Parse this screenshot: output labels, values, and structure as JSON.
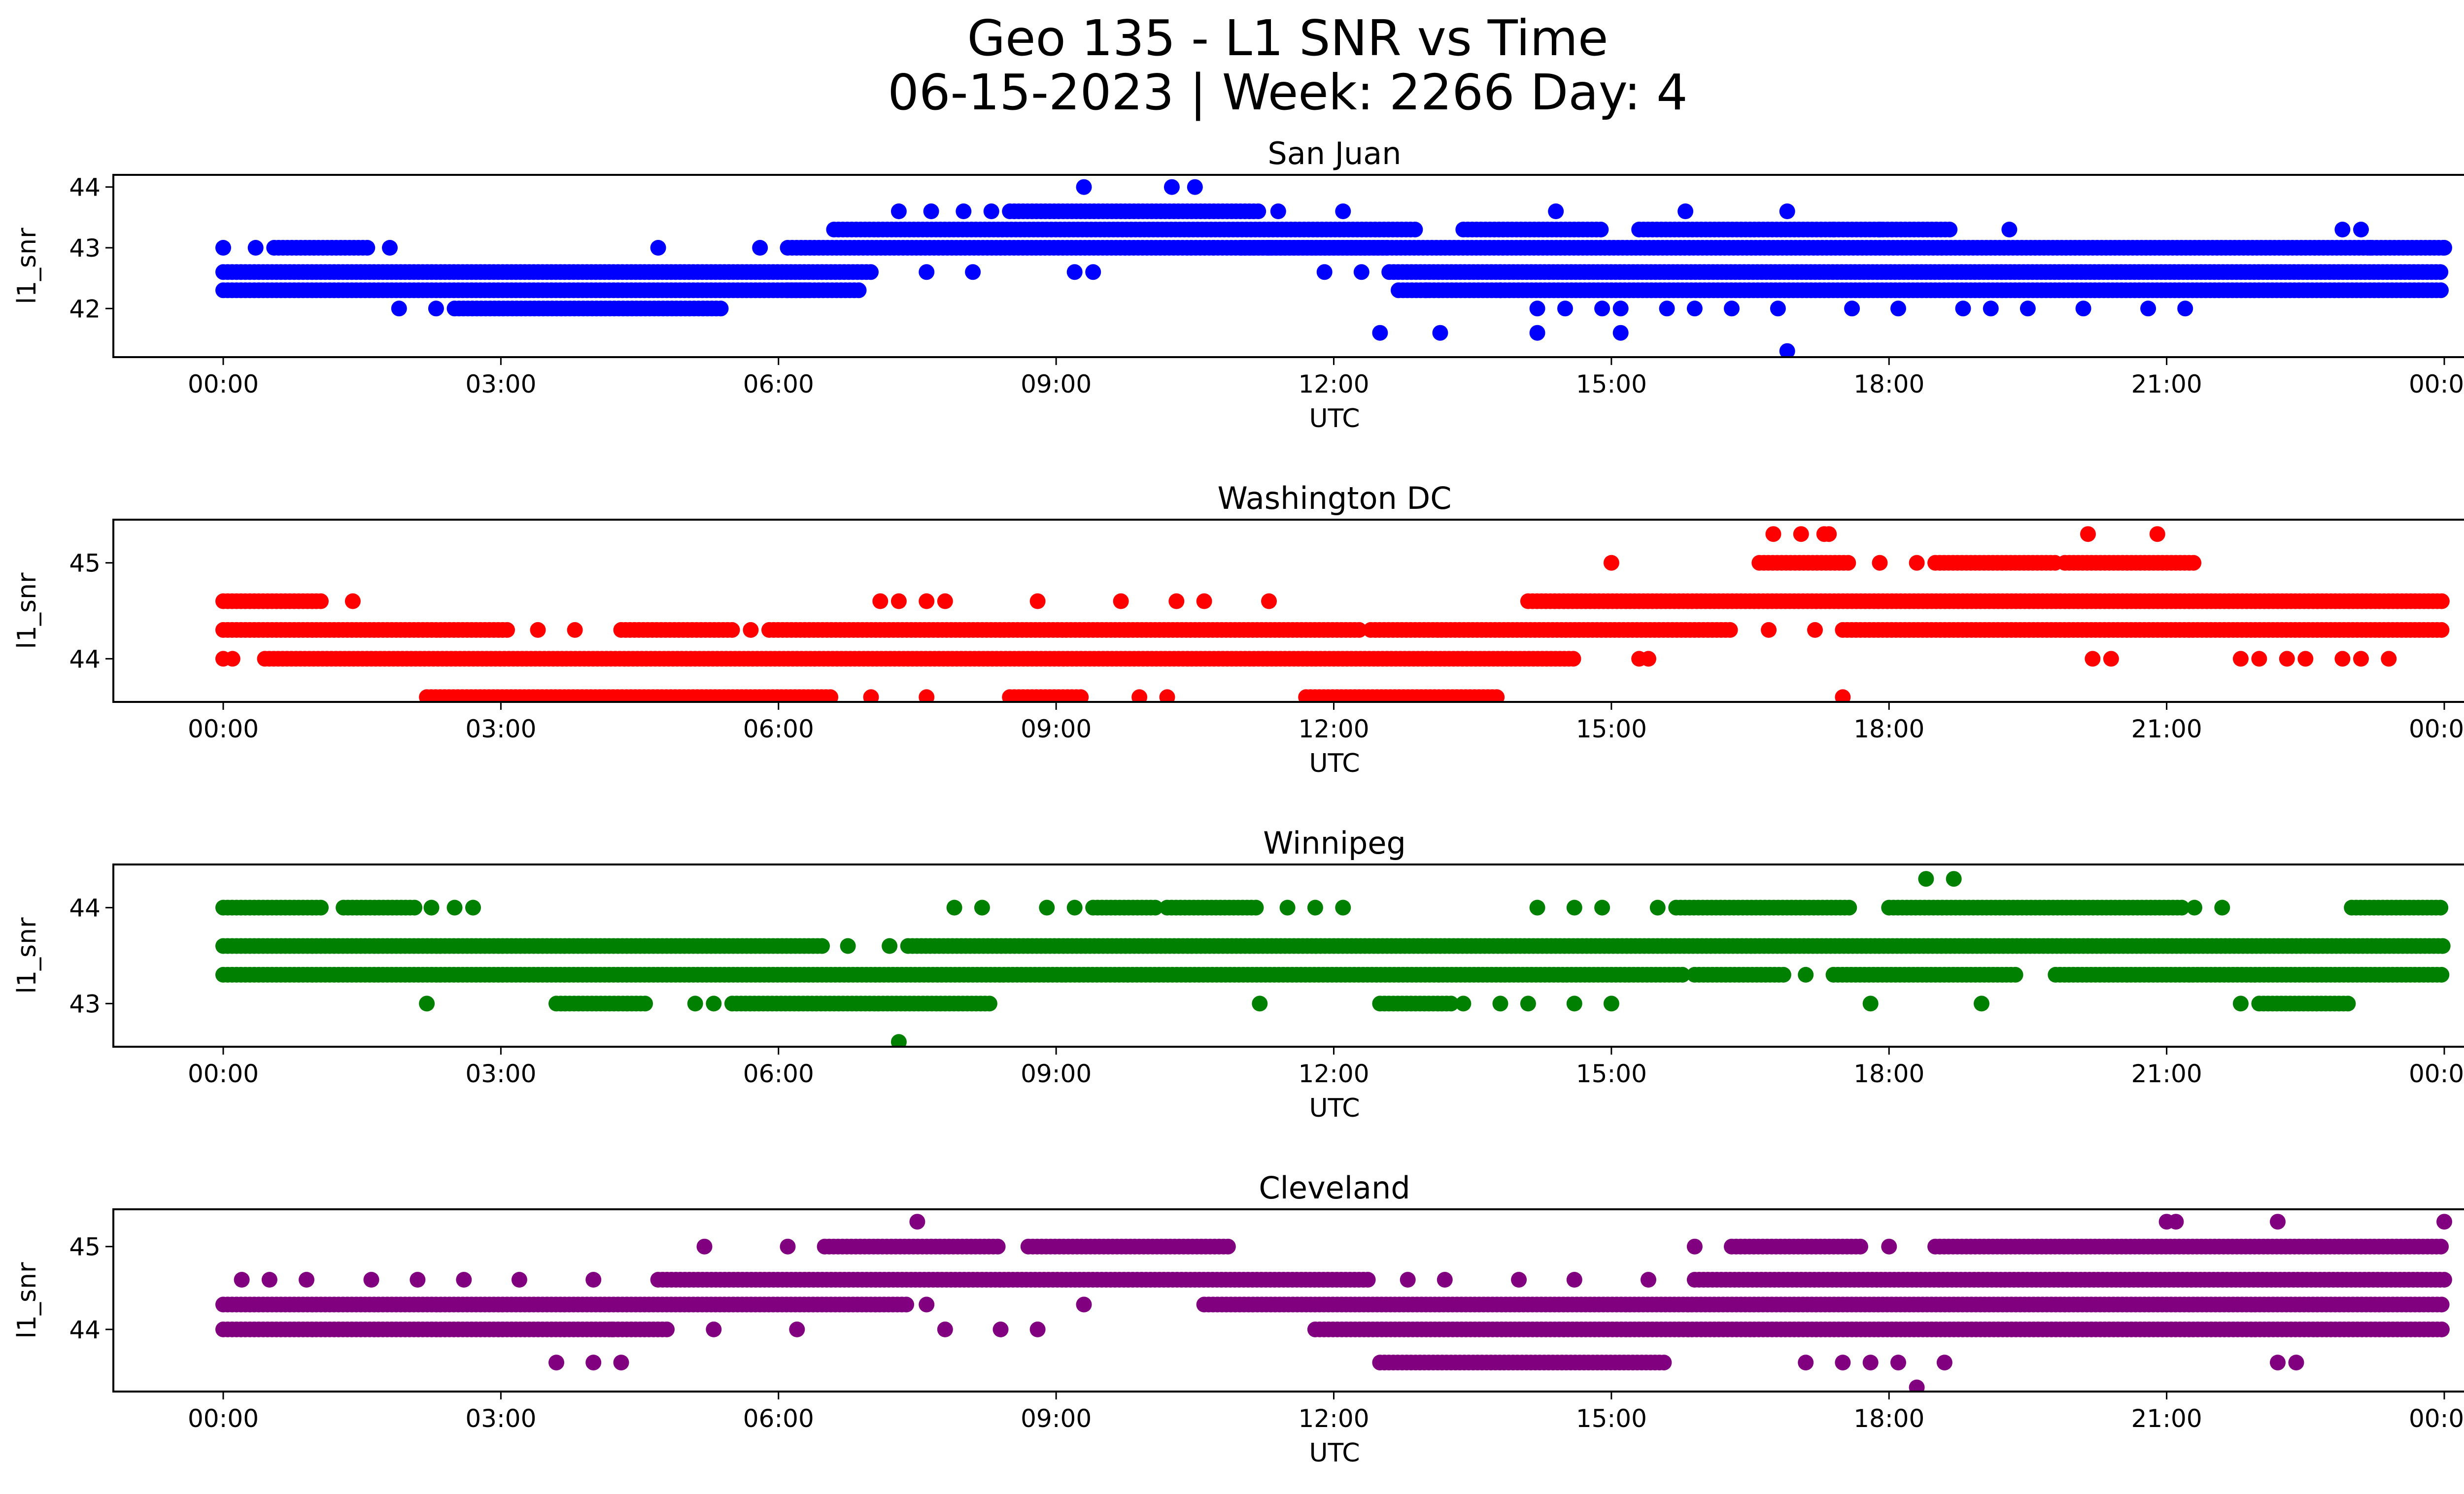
{
  "title_line1": "Geo 135 - L1 SNR vs Time",
  "title_line2": "06-15-2023 | Week: 2266 Day: 4",
  "chart_data": [
    {
      "type": "scatter",
      "title": "San Juan",
      "xlabel": "UTC",
      "ylabel": "l1_snr",
      "color": "#0000ff",
      "xlim": [
        "00:00",
        "00:00"
      ],
      "xticks": [
        "00:00",
        "03:00",
        "06:00",
        "09:00",
        "12:00",
        "15:00",
        "18:00",
        "21:00",
        "00:00"
      ],
      "ylim": [
        41.2,
        44.2
      ],
      "yticks": [
        "42",
        "43",
        "44"
      ],
      "series": [
        {
          "y": 42.3,
          "segments": [
            [
              0.0,
              6.35
            ],
            [
              6.1,
              6.9
            ],
            [
              12.7,
              24.0
            ]
          ]
        },
        {
          "y": 42.6,
          "segments": [
            [
              0.0,
              7.0
            ],
            [
              12.6,
              24.0
            ]
          ]
        },
        {
          "y": 43.0,
          "segments": [
            [
              0.55,
              1.6
            ],
            [
              6.1,
              12.6
            ],
            [
              11.0,
              24.0
            ]
          ]
        },
        {
          "y": 43.3,
          "segments": [
            [
              6.6,
              12.9
            ],
            [
              13.4,
              14.9
            ],
            [
              15.3,
              18.7
            ]
          ]
        },
        {
          "y": 43.6,
          "segments": [
            [
              8.5,
              11.2
            ]
          ]
        },
        {
          "y": 42.0,
          "segments": [
            [
              2.5,
              5.4
            ]
          ]
        }
      ],
      "points": [
        {
          "x": 0.0,
          "y": 43.0
        },
        {
          "x": 0.35,
          "y": 43.0
        },
        {
          "x": 1.8,
          "y": 43.0
        },
        {
          "x": 4.7,
          "y": 43.0
        },
        {
          "x": 5.8,
          "y": 43.0
        },
        {
          "x": 24.0,
          "y": 43.0
        },
        {
          "x": 23.2,
          "y": 43.0
        },
        {
          "x": 1.9,
          "y": 42.0
        },
        {
          "x": 2.3,
          "y": 42.0
        },
        {
          "x": 7.3,
          "y": 43.6
        },
        {
          "x": 7.65,
          "y": 43.6
        },
        {
          "x": 8.0,
          "y": 43.6
        },
        {
          "x": 8.3,
          "y": 43.6
        },
        {
          "x": 11.4,
          "y": 43.6
        },
        {
          "x": 12.1,
          "y": 43.6
        },
        {
          "x": 14.4,
          "y": 43.6
        },
        {
          "x": 15.8,
          "y": 43.6
        },
        {
          "x": 16.9,
          "y": 43.6
        },
        {
          "x": 9.3,
          "y": 44.0
        },
        {
          "x": 10.25,
          "y": 44.0
        },
        {
          "x": 10.5,
          "y": 44.0
        },
        {
          "x": 7.6,
          "y": 42.6
        },
        {
          "x": 8.1,
          "y": 42.6
        },
        {
          "x": 9.2,
          "y": 42.6
        },
        {
          "x": 9.4,
          "y": 42.6
        },
        {
          "x": 10.7,
          "y": 43.0
        },
        {
          "x": 11.0,
          "y": 43.0
        },
        {
          "x": 11.3,
          "y": 43.0
        },
        {
          "x": 11.9,
          "y": 42.6
        },
        {
          "x": 12.3,
          "y": 42.6
        },
        {
          "x": 13.0,
          "y": 42.3
        },
        {
          "x": 13.8,
          "y": 42.3
        },
        {
          "x": 14.2,
          "y": 42.0
        },
        {
          "x": 14.5,
          "y": 42.0
        },
        {
          "x": 14.9,
          "y": 42.0
        },
        {
          "x": 15.1,
          "y": 42.0
        },
        {
          "x": 15.6,
          "y": 42.0
        },
        {
          "x": 15.9,
          "y": 42.0
        },
        {
          "x": 16.3,
          "y": 42.0
        },
        {
          "x": 16.8,
          "y": 42.0
        },
        {
          "x": 17.6,
          "y": 42.0
        },
        {
          "x": 18.1,
          "y": 42.0
        },
        {
          "x": 18.8,
          "y": 42.0
        },
        {
          "x": 19.1,
          "y": 42.0
        },
        {
          "x": 19.5,
          "y": 42.0
        },
        {
          "x": 20.1,
          "y": 42.0
        },
        {
          "x": 20.8,
          "y": 42.0
        },
        {
          "x": 21.2,
          "y": 42.0
        },
        {
          "x": 12.5,
          "y": 41.6
        },
        {
          "x": 13.15,
          "y": 41.6
        },
        {
          "x": 14.2,
          "y": 41.6
        },
        {
          "x": 15.1,
          "y": 41.6
        },
        {
          "x": 16.9,
          "y": 41.3
        },
        {
          "x": 19.3,
          "y": 43.3
        },
        {
          "x": 22.9,
          "y": 43.3
        },
        {
          "x": 23.1,
          "y": 43.3
        },
        {
          "x": 17.4,
          "y": 43.3
        },
        {
          "x": 17.9,
          "y": 43.3
        }
      ]
    },
    {
      "type": "scatter",
      "title": "Washington DC",
      "xlabel": "UTC",
      "ylabel": "l1_snr",
      "color": "#ff0000",
      "xlim": [
        "00:00",
        "00:00"
      ],
      "xticks": [
        "00:00",
        "03:00",
        "06:00",
        "09:00",
        "12:00",
        "15:00",
        "18:00",
        "21:00",
        "00:00"
      ],
      "ylim": [
        43.55,
        45.45
      ],
      "yticks": [
        "44",
        "45"
      ],
      "series": [
        {
          "y": 44.3,
          "segments": [
            [
              0.0,
              3.1
            ],
            [
              4.3,
              5.5
            ],
            [
              5.9,
              12.3
            ],
            [
              12.4,
              16.3
            ],
            [
              17.5,
              24.0
            ]
          ]
        },
        {
          "y": 44.0,
          "segments": [
            [
              0.45,
              14.6
            ]
          ]
        },
        {
          "y": 44.6,
          "segments": [
            [
              0.0,
              1.1
            ],
            [
              14.1,
              24.0
            ]
          ]
        },
        {
          "y": 45.0,
          "segments": [
            [
              16.6,
              17.6
            ],
            [
              18.5,
              19.8
            ],
            [
              19.9,
              21.3
            ]
          ]
        },
        {
          "y": 43.6,
          "segments": [
            [
              2.2,
              6.6
            ],
            [
              8.5,
              9.3
            ],
            [
              11.7,
              13.8
            ]
          ]
        }
      ],
      "points": [
        {
          "x": 0.0,
          "y": 44.0
        },
        {
          "x": 0.1,
          "y": 44.0
        },
        {
          "x": 1.4,
          "y": 44.6
        },
        {
          "x": 3.4,
          "y": 44.3
        },
        {
          "x": 3.8,
          "y": 44.3
        },
        {
          "x": 5.7,
          "y": 44.3
        },
        {
          "x": 7.1,
          "y": 44.6
        },
        {
          "x": 7.3,
          "y": 44.6
        },
        {
          "x": 7.6,
          "y": 44.6
        },
        {
          "x": 7.8,
          "y": 44.6
        },
        {
          "x": 8.8,
          "y": 44.6
        },
        {
          "x": 9.7,
          "y": 44.6
        },
        {
          "x": 10.3,
          "y": 44.6
        },
        {
          "x": 10.6,
          "y": 44.6
        },
        {
          "x": 11.3,
          "y": 44.6
        },
        {
          "x": 7.0,
          "y": 43.6
        },
        {
          "x": 7.6,
          "y": 43.6
        },
        {
          "x": 9.9,
          "y": 43.6
        },
        {
          "x": 10.2,
          "y": 43.6
        },
        {
          "x": 15.0,
          "y": 45.0
        },
        {
          "x": 15.3,
          "y": 44.0
        },
        {
          "x": 15.4,
          "y": 44.0
        },
        {
          "x": 16.7,
          "y": 44.3
        },
        {
          "x": 17.2,
          "y": 44.3
        },
        {
          "x": 16.75,
          "y": 45.3
        },
        {
          "x": 17.05,
          "y": 45.3
        },
        {
          "x": 17.3,
          "y": 45.3
        },
        {
          "x": 17.35,
          "y": 45.3
        },
        {
          "x": 17.5,
          "y": 43.6
        },
        {
          "x": 17.9,
          "y": 45.0
        },
        {
          "x": 18.3,
          "y": 45.0
        },
        {
          "x": 20.15,
          "y": 45.3
        },
        {
          "x": 20.9,
          "y": 45.3
        },
        {
          "x": 20.2,
          "y": 44.0
        },
        {
          "x": 20.4,
          "y": 44.0
        },
        {
          "x": 21.8,
          "y": 44.0
        },
        {
          "x": 22.0,
          "y": 44.0
        },
        {
          "x": 22.3,
          "y": 44.0
        },
        {
          "x": 22.5,
          "y": 44.0
        },
        {
          "x": 22.9,
          "y": 44.0
        },
        {
          "x": 23.1,
          "y": 44.0
        },
        {
          "x": 23.4,
          "y": 44.0
        }
      ]
    },
    {
      "type": "scatter",
      "title": "Winnipeg",
      "xlabel": "UTC",
      "ylabel": "l1_snr",
      "color": "#008000",
      "xlim": [
        "00:00",
        "00:00"
      ],
      "xticks": [
        "00:00",
        "03:00",
        "06:00",
        "09:00",
        "12:00",
        "15:00",
        "18:00",
        "21:00",
        "00:00"
      ],
      "ylim": [
        42.55,
        44.45
      ],
      "yticks": [
        "43",
        "44"
      ],
      "series": [
        {
          "y": 43.6,
          "segments": [
            [
              0.0,
              6.5
            ],
            [
              7.4,
              24.0
            ]
          ]
        },
        {
          "y": 43.3,
          "segments": [
            [
              0.0,
              15.8
            ],
            [
              15.9,
              16.9
            ],
            [
              17.4,
              19.4
            ],
            [
              19.8,
              24.0
            ]
          ]
        },
        {
          "y": 44.0,
          "segments": [
            [
              0.0,
              1.1
            ],
            [
              1.3,
              2.1
            ],
            [
              9.4,
              10.1
            ],
            [
              10.2,
              11.2
            ],
            [
              15.7,
              17.6
            ],
            [
              18.0,
              21.2
            ],
            [
              23.0,
              24.0
            ]
          ]
        },
        {
          "y": 43.0,
          "segments": [
            [
              3.6,
              4.6
            ],
            [
              5.5,
              8.3
            ],
            [
              12.5,
              13.3
            ],
            [
              22.0,
              23.0
            ]
          ]
        }
      ],
      "points": [
        {
          "x": 2.25,
          "y": 44.0
        },
        {
          "x": 2.5,
          "y": 44.0
        },
        {
          "x": 2.7,
          "y": 44.0
        },
        {
          "x": 2.2,
          "y": 43.0
        },
        {
          "x": 5.1,
          "y": 43.0
        },
        {
          "x": 5.3,
          "y": 43.0
        },
        {
          "x": 6.75,
          "y": 43.6
        },
        {
          "x": 7.2,
          "y": 43.6
        },
        {
          "x": 7.3,
          "y": 42.6
        },
        {
          "x": 7.9,
          "y": 44.0
        },
        {
          "x": 8.2,
          "y": 44.0
        },
        {
          "x": 8.9,
          "y": 44.0
        },
        {
          "x": 9.2,
          "y": 44.0
        },
        {
          "x": 11.5,
          "y": 44.0
        },
        {
          "x": 11.8,
          "y": 44.0
        },
        {
          "x": 12.1,
          "y": 44.0
        },
        {
          "x": 11.2,
          "y": 43.0
        },
        {
          "x": 13.4,
          "y": 43.0
        },
        {
          "x": 13.8,
          "y": 43.0
        },
        {
          "x": 14.1,
          "y": 43.0
        },
        {
          "x": 14.6,
          "y": 43.0
        },
        {
          "x": 15.0,
          "y": 43.0
        },
        {
          "x": 14.2,
          "y": 44.0
        },
        {
          "x": 14.6,
          "y": 44.0
        },
        {
          "x": 14.9,
          "y": 44.0
        },
        {
          "x": 15.5,
          "y": 44.0
        },
        {
          "x": 17.1,
          "y": 43.3
        },
        {
          "x": 17.8,
          "y": 43.0
        },
        {
          "x": 19.0,
          "y": 43.0
        },
        {
          "x": 18.4,
          "y": 44.3
        },
        {
          "x": 18.7,
          "y": 44.3
        },
        {
          "x": 21.3,
          "y": 44.0
        },
        {
          "x": 21.6,
          "y": 44.0
        },
        {
          "x": 21.8,
          "y": 43.0
        }
      ]
    },
    {
      "type": "scatter",
      "title": "Cleveland",
      "xlabel": "UTC",
      "ylabel": "l1_snr",
      "color": "#800080",
      "xlim": [
        "00:00",
        "00:00"
      ],
      "xticks": [
        "00:00",
        "03:00",
        "06:00",
        "09:00",
        "12:00",
        "15:00",
        "18:00",
        "21:00",
        "00:00"
      ],
      "ylim": [
        43.25,
        45.45
      ],
      "yticks": [
        "44",
        "45"
      ],
      "series": [
        {
          "y": 44.3,
          "segments": [
            [
              0.0,
              7.4
            ],
            [
              10.6,
              24.0
            ]
          ]
        },
        {
          "y": 44.0,
          "segments": [
            [
              0.0,
              4.8
            ],
            [
              11.8,
              24.0
            ]
          ]
        },
        {
          "y": 44.6,
          "segments": [
            [
              4.7,
              12.4
            ],
            [
              15.9,
              24.0
            ]
          ]
        },
        {
          "y": 45.0,
          "segments": [
            [
              6.5,
              8.4
            ],
            [
              8.7,
              10.9
            ],
            [
              16.3,
              17.7
            ],
            [
              18.5,
              24.0
            ]
          ]
        },
        {
          "y": 43.6,
          "segments": [
            [
              12.5,
              15.6
            ]
          ]
        }
      ],
      "points": [
        {
          "x": 0.2,
          "y": 44.6
        },
        {
          "x": 0.5,
          "y": 44.6
        },
        {
          "x": 0.9,
          "y": 44.6
        },
        {
          "x": 1.6,
          "y": 44.6
        },
        {
          "x": 2.1,
          "y": 44.6
        },
        {
          "x": 2.6,
          "y": 44.6
        },
        {
          "x": 3.2,
          "y": 44.6
        },
        {
          "x": 4.0,
          "y": 44.6
        },
        {
          "x": 3.6,
          "y": 43.6
        },
        {
          "x": 4.0,
          "y": 43.6
        },
        {
          "x": 4.3,
          "y": 43.6
        },
        {
          "x": 4.2,
          "y": 44.0
        },
        {
          "x": 5.2,
          "y": 45.0
        },
        {
          "x": 6.1,
          "y": 45.0
        },
        {
          "x": 5.3,
          "y": 44.0
        },
        {
          "x": 6.2,
          "y": 44.0
        },
        {
          "x": 7.5,
          "y": 45.3
        },
        {
          "x": 7.8,
          "y": 44.0
        },
        {
          "x": 8.4,
          "y": 44.0
        },
        {
          "x": 8.8,
          "y": 44.0
        },
        {
          "x": 7.6,
          "y": 44.3
        },
        {
          "x": 9.3,
          "y": 44.3
        },
        {
          "x": 12.8,
          "y": 44.6
        },
        {
          "x": 13.2,
          "y": 44.6
        },
        {
          "x": 14.0,
          "y": 44.6
        },
        {
          "x": 14.6,
          "y": 44.6
        },
        {
          "x": 15.4,
          "y": 44.6
        },
        {
          "x": 15.9,
          "y": 45.0
        },
        {
          "x": 17.5,
          "y": 43.6
        },
        {
          "x": 17.1,
          "y": 43.6
        },
        {
          "x": 17.8,
          "y": 43.6
        },
        {
          "x": 18.1,
          "y": 43.6
        },
        {
          "x": 18.6,
          "y": 43.6
        },
        {
          "x": 18.3,
          "y": 43.3
        },
        {
          "x": 21.0,
          "y": 45.3
        },
        {
          "x": 21.1,
          "y": 45.3
        },
        {
          "x": 22.2,
          "y": 45.3
        },
        {
          "x": 24.0,
          "y": 45.3
        },
        {
          "x": 22.2,
          "y": 43.6
        },
        {
          "x": 22.4,
          "y": 43.6
        },
        {
          "x": 18.0,
          "y": 45.0
        }
      ]
    }
  ]
}
